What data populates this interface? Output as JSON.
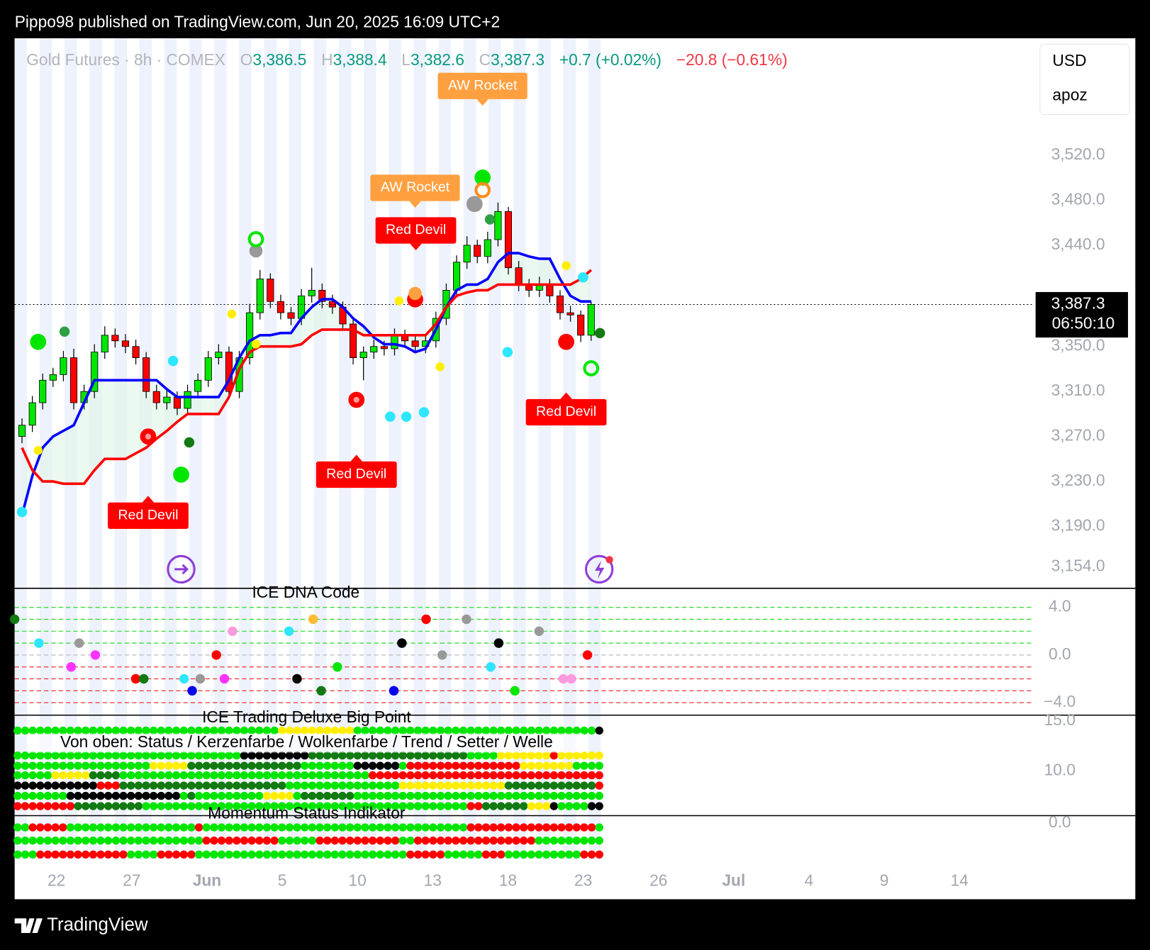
{
  "header": {
    "publisher": "Pippo98 published on TradingView.com, Jun 20, 2025 16:09 UTC+2"
  },
  "footer": {
    "brand": "TradingView"
  },
  "chart_data": {
    "type": "candlestick",
    "title": "Gold Futures · 8h · COMEX",
    "ohlc": [
      {
        "key": "O",
        "value": {
          "value": 3386.5,
          "label": "3,386.5"
        }
      },
      {
        "key": "H",
        "value": {
          "value": 3388.4,
          "label": "3,388.4"
        }
      },
      {
        "key": "L",
        "value": {
          "value": 3382.6,
          "label": "3,382.6"
        }
      },
      {
        "key": "C",
        "value": {
          "value": 3387.3,
          "label": "3,387.3"
        }
      }
    ],
    "change": "+0.7 (+0.02%)",
    "change_period": "−20.8 (−0.61%)",
    "currency": "USD",
    "indicator": "apoz",
    "last_price": {
      "value": 3387.3,
      "label": "3,387.3"
    },
    "countdown": "06:50:10",
    "categories": [
      "22",
      "27",
      "Jun",
      "5",
      "10",
      "13",
      "18",
      "23",
      "26",
      "Jul",
      "4",
      "9",
      "14"
    ],
    "ylim": [
      3135,
      3624
    ],
    "yticks": [
      {
        "value": 3520,
        "label": "3,520.0"
      },
      {
        "value": 3480,
        "label": "3,480.0"
      },
      {
        "value": 3440,
        "label": "3,440.0"
      },
      {
        "value": 3350,
        "label": "3,350.0"
      },
      {
        "value": 3310,
        "label": "3,310.0"
      },
      {
        "value": 3270,
        "label": "3,270.0"
      },
      {
        "value": 3230,
        "label": "3,230.0"
      },
      {
        "value": 3190,
        "label": "3,190.0"
      },
      {
        "value": 3154,
        "label": "3,154.0"
      }
    ],
    "up_color": "#00e600",
    "down_color": "#ff0000",
    "open": [
      3270,
      3280,
      3300,
      3320,
      3325,
      3340,
      3300,
      3310,
      3345,
      3360,
      3355,
      3350,
      3340,
      3310,
      3300,
      3305,
      3295,
      3310,
      3320,
      3340,
      3345,
      3310,
      3340,
      3380,
      3410,
      3390,
      3380,
      3375,
      3395,
      3400,
      3390,
      3385,
      3370,
      3340,
      3345,
      3350,
      3348,
      3360,
      3355,
      3350,
      3355,
      3375,
      3400,
      3425,
      3440,
      3430,
      3445,
      3470,
      3420,
      3405,
      3400,
      3405,
      3395,
      3380,
      3378,
      3360
    ],
    "high": [
      3286,
      3306,
      3326,
      3331,
      3346,
      3348,
      3316,
      3352,
      3368,
      3366,
      3361,
      3356,
      3345,
      3316,
      3311,
      3310,
      3316,
      3326,
      3346,
      3352,
      3350,
      3346,
      3388,
      3418,
      3415,
      3396,
      3385,
      3401,
      3420,
      3406,
      3396,
      3390,
      3375,
      3350,
      3356,
      3355,
      3366,
      3365,
      3360,
      3361,
      3381,
      3406,
      3431,
      3448,
      3445,
      3452,
      3478,
      3474,
      3426,
      3410,
      3412,
      3410,
      3400,
      3386,
      3382,
      3390
    ],
    "low": [
      3264,
      3274,
      3294,
      3314,
      3319,
      3294,
      3294,
      3304,
      3339,
      3349,
      3344,
      3334,
      3304,
      3294,
      3294,
      3289,
      3289,
      3304,
      3314,
      3334,
      3304,
      3304,
      3334,
      3374,
      3384,
      3374,
      3369,
      3369,
      3389,
      3384,
      3379,
      3364,
      3334,
      3320,
      3339,
      3342,
      3342,
      3349,
      3344,
      3344,
      3349,
      3369,
      3394,
      3419,
      3424,
      3424,
      3439,
      3414,
      3399,
      3394,
      3394,
      3389,
      3374,
      3372,
      3354,
      3355
    ],
    "close": [
      3280,
      3300,
      3320,
      3325,
      3340,
      3300,
      3310,
      3345,
      3360,
      3355,
      3350,
      3340,
      3310,
      3300,
      3305,
      3295,
      3310,
      3320,
      3340,
      3345,
      3310,
      3340,
      3380,
      3410,
      3390,
      3380,
      3375,
      3395,
      3400,
      3390,
      3385,
      3370,
      3340,
      3345,
      3350,
      3348,
      3360,
      3355,
      3350,
      3355,
      3375,
      3400,
      3425,
      3440,
      3430,
      3445,
      3470,
      3420,
      3405,
      3400,
      3405,
      3395,
      3380,
      3378,
      3360,
      3387.3
    ],
    "lines": [
      {
        "color": "#0000ff",
        "values": [
          3200,
          3235,
          3260,
          3270,
          3275,
          3280,
          3300,
          3320,
          3320,
          3320,
          3320,
          3320,
          3320,
          3320,
          3312,
          3305,
          3305,
          3305,
          3305,
          3305,
          3320,
          3340,
          3355,
          3360,
          3360,
          3362,
          3362,
          3375,
          3385,
          3392,
          3392,
          3385,
          3375,
          3368,
          3358,
          3352,
          3352,
          3350,
          3345,
          3348,
          3365,
          3385,
          3400,
          3405,
          3405,
          3410,
          3425,
          3433,
          3433,
          3430,
          3428,
          3428,
          3410,
          3395,
          3390,
          3390
        ]
      },
      {
        "color": "#ff0000",
        "values": [
          3260,
          3240,
          3230,
          3230,
          3228,
          3228,
          3228,
          3240,
          3250,
          3250,
          3250,
          3255,
          3260,
          3268,
          3275,
          3283,
          3290,
          3290,
          3290,
          3290,
          3305,
          3330,
          3345,
          3350,
          3350,
          3350,
          3350,
          3352,
          3360,
          3365,
          3365,
          3365,
          3365,
          3360,
          3360,
          3360,
          3360,
          3360,
          3360,
          3360,
          3370,
          3385,
          3395,
          3398,
          3400,
          3400,
          3405,
          3405,
          3405,
          3405,
          3405,
          3405,
          3405,
          3405,
          3410,
          3418
        ]
      }
    ],
    "annotations": [
      {
        "text": "Red Devil"
      },
      {
        "text": "Red Devil"
      },
      {
        "text": "Red Devil"
      },
      {
        "text": "Red Devil"
      },
      {
        "text": "AW Rocket"
      },
      {
        "text": "AW Rocket"
      }
    ],
    "panes": [
      {
        "title": "ICE DNA Code",
        "ylim": [
          -5.05,
          5.6
        ],
        "yticks": [
          {
            "value": 4,
            "label": "4.0"
          },
          {
            "value": 0,
            "label": "0.0"
          },
          {
            "value": -4,
            "label": "−4.0"
          }
        ]
      },
      {
        "title": "ICE Trading Deluxe Big Point",
        "subtitle": "Von oben: Status / Kerzenfarbe / Wolkenfarbe / Trend / Setter / Welle",
        "ylim": [
          5.51,
          15.59
        ],
        "yticks": [
          {
            "value": 15,
            "label": "15.0"
          },
          {
            "value": 10,
            "label": "10.0"
          }
        ]
      },
      {
        "title": "Momentum Status Indikator",
        "ylim": [
          -3.5,
          0.6
        ],
        "yticks": [
          {
            "value": 0,
            "label": "0.0"
          }
        ]
      }
    ]
  }
}
